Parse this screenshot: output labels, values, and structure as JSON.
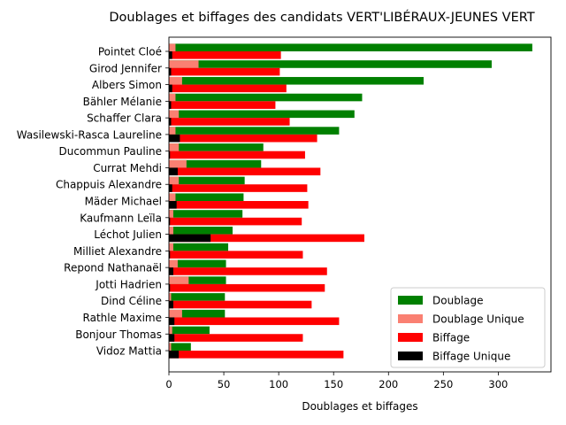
{
  "chart_data": {
    "type": "bar",
    "orientation": "horizontal",
    "title": "Doublages et biffages des candidats VERT'LIBÉRAUX-JEUNES VERT",
    "xlabel": "Doublages et biffages",
    "ylabel": "",
    "xlim": [
      0,
      348
    ],
    "x_ticks": [
      0,
      50,
      100,
      150,
      200,
      250,
      300
    ],
    "grid": false,
    "legend_position": "bottom-right",
    "categories": [
      "Pointet Cloé",
      "Girod Jennifer",
      "Albers Simon",
      "Bähler Mélanie",
      "Schaffer Clara",
      "Wasilewski-Rasca Laureline",
      "Ducommun Pauline",
      "Currat Mehdi",
      "Chappuis Alexandre",
      "Mäder Michael",
      "Kaufmann Leïla",
      "Léchot Julien",
      "Milliet Alexandre",
      "Repond Nathanaël",
      "Jotti Hadrien",
      "Dind Céline",
      "Rathle Maxime",
      "Bonjour Thomas",
      "Vidoz Mattia"
    ],
    "series": [
      {
        "name": "Doublage",
        "color": "#008000",
        "position": "upper",
        "values": [
          331,
          294,
          232,
          176,
          169,
          155,
          86,
          84,
          69,
          68,
          67,
          58,
          54,
          52,
          52,
          51,
          51,
          37,
          20
        ]
      },
      {
        "name": "Doublage Unique",
        "color": "#fa8072",
        "position": "upper",
        "values": [
          6,
          27,
          12,
          6,
          9,
          6,
          9,
          16,
          9,
          6,
          4,
          4,
          4,
          8,
          18,
          2,
          12,
          3,
          2
        ]
      },
      {
        "name": "Biffage",
        "color": "#ff0000",
        "position": "lower",
        "values": [
          102,
          101,
          107,
          97,
          110,
          135,
          124,
          138,
          126,
          127,
          121,
          178,
          122,
          144,
          142,
          130,
          155,
          122,
          159
        ]
      },
      {
        "name": "Biffage Unique",
        "color": "#000000",
        "position": "lower",
        "values": [
          3,
          2,
          3,
          2,
          2,
          10,
          1,
          8,
          3,
          7,
          1,
          38,
          1,
          4,
          1,
          4,
          5,
          5,
          9
        ]
      }
    ]
  }
}
